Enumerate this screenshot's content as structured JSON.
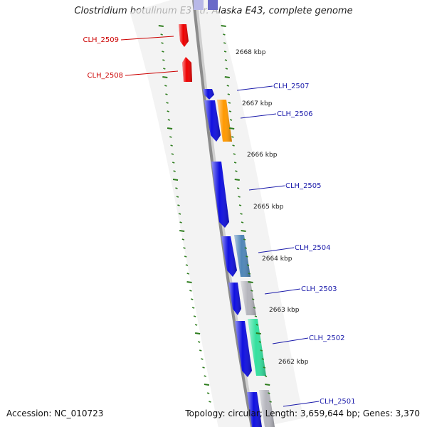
{
  "title": "Clostridium botulinum E3 str. Alaska E43, complete genome",
  "accession_text": "Accession: NC_010723",
  "summary_text": "Topology: circular; Length: 3,659,644 bp; Genes: 3,370",
  "colors": {
    "backbone": "#8c8c8c",
    "tick": "#2e7d1e",
    "label_reverse": "#cc0000",
    "label_forward": "#1a1aaa",
    "gene_red": "#ee0000",
    "gene_blue": "#1010e0",
    "gene_orange": "#ff9900",
    "gene_steel": "#4f86b8",
    "gene_gray": "#b4b4bc",
    "gene_green": "#33e09e"
  },
  "scale_labels": [
    "2668 kbp",
    "2667 kbp",
    "2666 kbp",
    "2665 kbp",
    "2664 kbp",
    "2663 kbp",
    "2662 kbp"
  ],
  "gene_labels": [
    {
      "name": "CLH_2509",
      "side": "left",
      "color": "#cc0000"
    },
    {
      "name": "CLH_2508",
      "side": "left",
      "color": "#cc0000"
    },
    {
      "name": "CLH_2507",
      "side": "right",
      "color": "#1a1aaa"
    },
    {
      "name": "CLH_2506",
      "side": "right",
      "color": "#1a1aaa"
    },
    {
      "name": "CLH_2505",
      "side": "right",
      "color": "#1a1aaa"
    },
    {
      "name": "CLH_2504",
      "side": "right",
      "color": "#1a1aaa"
    },
    {
      "name": "CLH_2503",
      "side": "right",
      "color": "#1a1aaa"
    },
    {
      "name": "CLH_2502",
      "side": "right",
      "color": "#1a1aaa"
    },
    {
      "name": "CLH_2501",
      "side": "right",
      "color": "#1a1aaa"
    }
  ]
}
